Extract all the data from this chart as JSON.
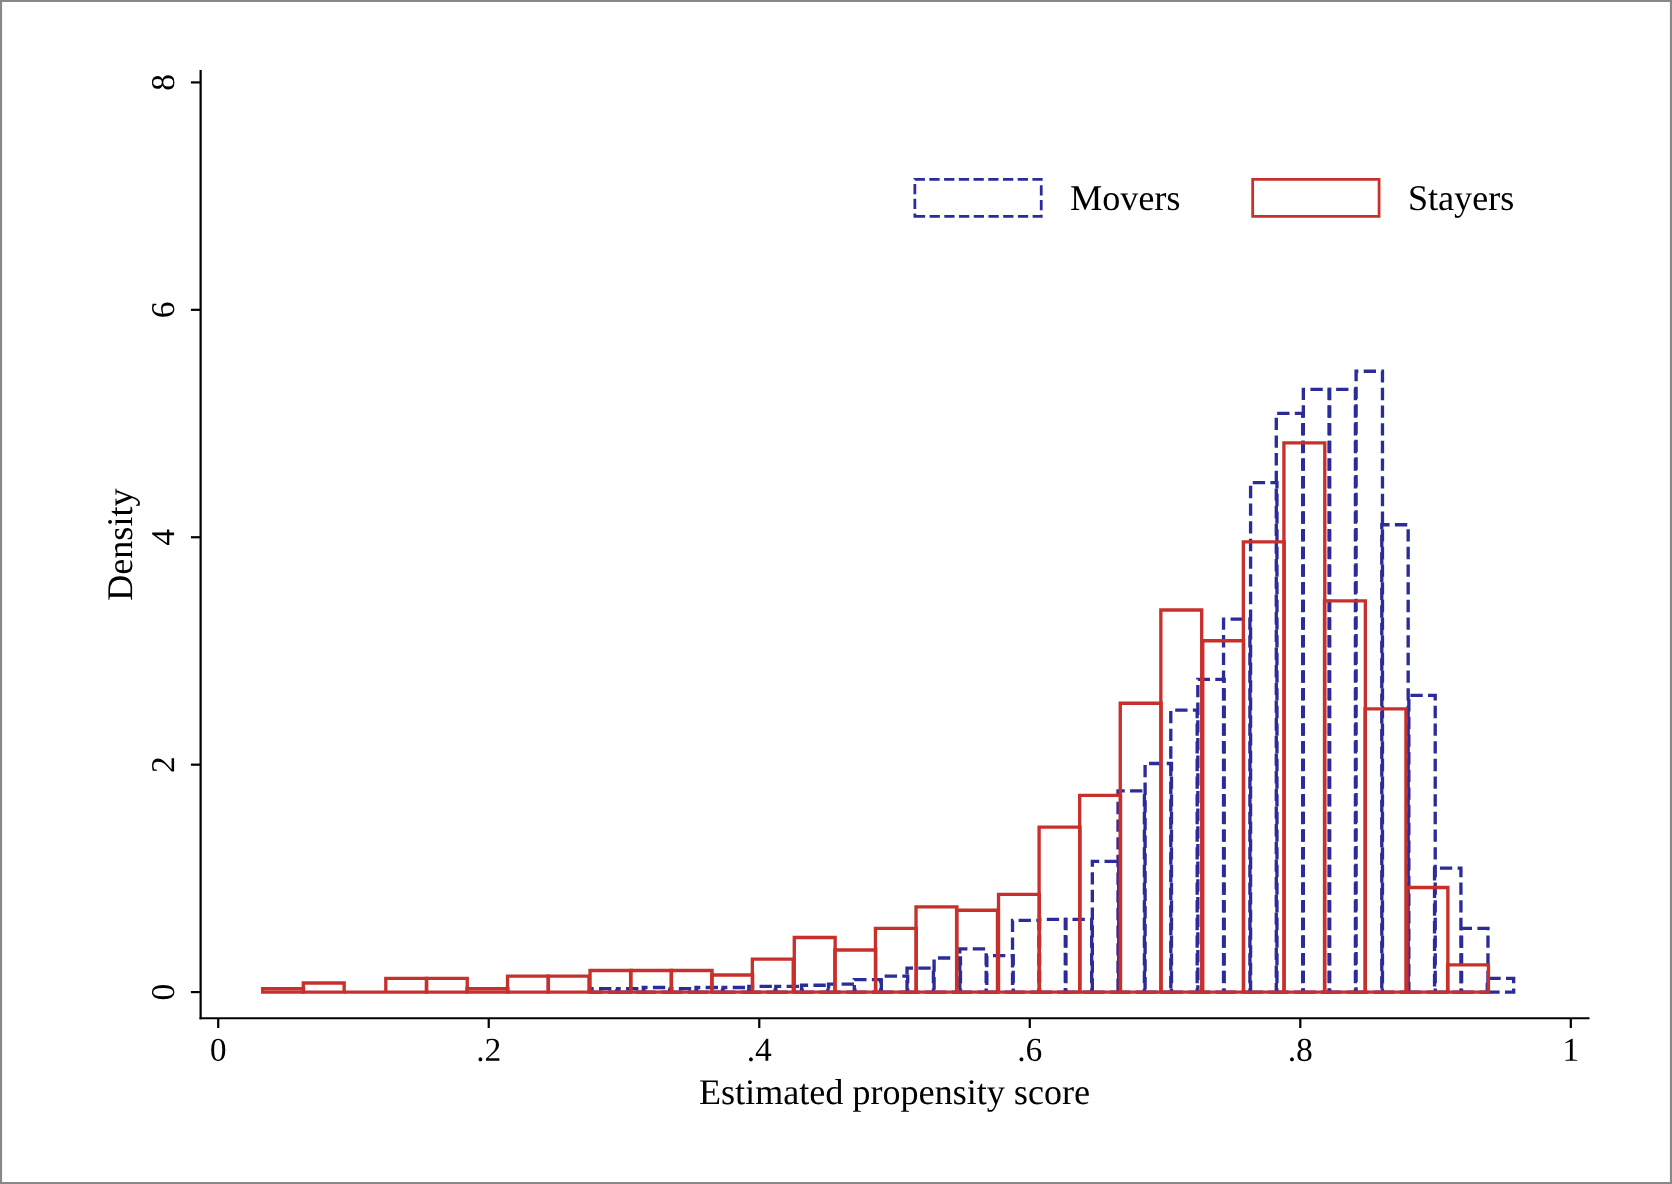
{
  "chart_data": {
    "type": "bar",
    "xlabel": "Estimated propensity score",
    "ylabel": "Density",
    "xlim": [
      -0.013,
      1.013
    ],
    "xticks": [
      0,
      {
        "value": 0.2,
        "label": ".2"
      },
      {
        "value": 0.4,
        "label": ".4"
      },
      {
        "value": 0.6,
        "label": ".6"
      },
      {
        "value": 0.8,
        "label": ".8"
      },
      1
    ],
    "ylim": [
      -0.23,
      8.1
    ],
    "yticks": [
      0,
      2,
      4,
      6,
      8
    ],
    "grid": false,
    "legend": "top right",
    "series": [
      {
        "name": "Movers",
        "color": "#2b2b9a",
        "line_style": "dashed",
        "x": [
          0.285,
          0.305,
          0.324,
          0.344,
          0.363,
          0.383,
          0.402,
          0.422,
          0.441,
          0.461,
          0.48,
          0.5,
          0.519,
          0.539,
          0.558,
          0.578,
          0.597,
          0.617,
          0.636,
          0.656,
          0.675,
          0.695,
          0.714,
          0.734,
          0.753,
          0.773,
          0.792,
          0.812,
          0.831,
          0.851,
          0.87,
          0.89,
          0.909,
          0.929,
          0.948
        ],
        "values": [
          0.03,
          0.03,
          0.04,
          0.03,
          0.04,
          0.04,
          0.05,
          0.05,
          0.06,
          0.07,
          0.11,
          0.14,
          0.21,
          0.3,
          0.38,
          0.32,
          0.63,
          0.64,
          0.64,
          1.15,
          1.77,
          2.01,
          2.48,
          2.75,
          3.28,
          4.48,
          5.09,
          5.3,
          5.3,
          5.46,
          4.11,
          2.61,
          1.09,
          0.56,
          0.12
        ]
      },
      {
        "name": "Stayers",
        "color": "#c8302c",
        "line_style": "solid",
        "x": [
          0.048,
          0.078,
          0.108,
          0.139,
          0.169,
          0.199,
          0.229,
          0.259,
          0.29,
          0.32,
          0.35,
          0.38,
          0.41,
          0.441,
          0.471,
          0.501,
          0.531,
          0.561,
          0.592,
          0.622,
          0.652,
          0.682,
          0.712,
          0.743,
          0.773,
          0.803,
          0.833,
          0.863,
          0.894,
          0.924
        ],
        "values": [
          0.03,
          0.08,
          0,
          0.12,
          0.12,
          0.03,
          0.14,
          0.14,
          0.19,
          0.19,
          0.19,
          0.15,
          0.29,
          0.48,
          0.37,
          0.56,
          0.75,
          0.72,
          0.86,
          1.45,
          1.73,
          2.54,
          3.36,
          3.09,
          3.96,
          4.83,
          3.44,
          2.49,
          0.92,
          0.24
        ]
      }
    ]
  }
}
